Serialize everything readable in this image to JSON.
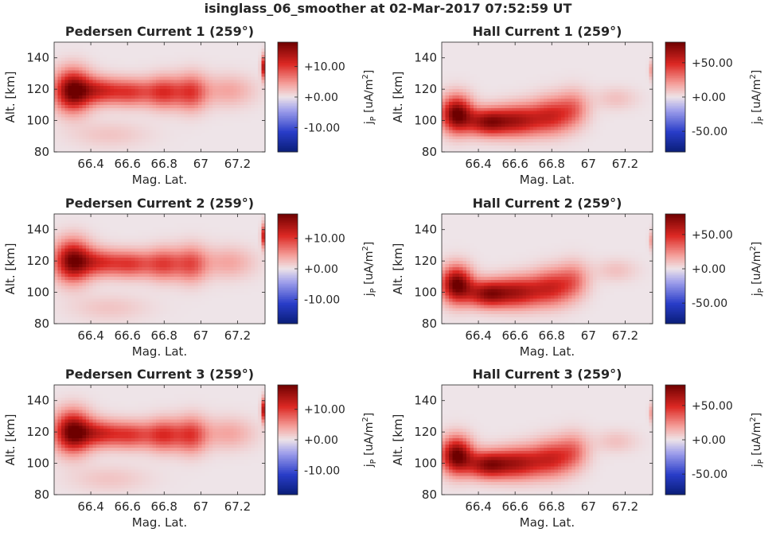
{
  "figure": {
    "title": "isinglass_06_smoother at 02-Mar-2017 07:52:59 UT"
  },
  "chart_data": [
    {
      "type": "heatmap",
      "title": "Pedersen Current 1 (259°)",
      "xlabel": "Mag. Lat.",
      "ylabel": "Alt. [km]",
      "xlim": [
        66.2,
        67.35
      ],
      "ylim": [
        80,
        150
      ],
      "xticks": [
        66.4,
        66.6,
        66.8,
        67,
        67.2
      ],
      "xtick_labels": [
        "66.4",
        "66.6",
        "66.8",
        "67",
        "67.2"
      ],
      "yticks": [
        80,
        100,
        120,
        140
      ],
      "ytick_labels": [
        "80",
        "100",
        "120",
        "140"
      ],
      "colorbar": {
        "label": "j_P [uA/m^2]",
        "label_main": "j",
        "label_sub": "P",
        "label_rest": " [uA/m",
        "label_sup": "2",
        "label_end": "]",
        "clim": [
          -18,
          18
        ],
        "ticks": [
          10,
          0,
          -10
        ],
        "tick_labels": [
          "+10.00",
          "+0.00",
          "-10.00"
        ],
        "colormap": "blue-white-red"
      },
      "features": [
        {
          "x": 66.3,
          "y": 119,
          "amp": 18,
          "sx": 0.07,
          "sy": 9
        },
        {
          "x": 66.45,
          "y": 119,
          "amp": 10,
          "sx": 0.08,
          "sy": 6
        },
        {
          "x": 66.62,
          "y": 118,
          "amp": 9,
          "sx": 0.08,
          "sy": 6
        },
        {
          "x": 66.8,
          "y": 118,
          "amp": 10,
          "sx": 0.07,
          "sy": 7
        },
        {
          "x": 66.95,
          "y": 118,
          "amp": 9,
          "sx": 0.06,
          "sy": 8
        },
        {
          "x": 67.15,
          "y": 119,
          "amp": 4,
          "sx": 0.1,
          "sy": 7
        },
        {
          "x": 66.5,
          "y": 91,
          "amp": 2,
          "sx": 0.15,
          "sy": 6
        },
        {
          "x": 67.35,
          "y": 134,
          "amp": 18,
          "sx": 0.012,
          "sy": 5
        }
      ]
    },
    {
      "type": "heatmap",
      "title": "Hall Current 1 (259°)",
      "xlabel": "Mag. Lat.",
      "ylabel": "Alt. [km]",
      "xlim": [
        66.2,
        67.35
      ],
      "ylim": [
        80,
        150
      ],
      "xticks": [
        66.4,
        66.6,
        66.8,
        67,
        67.2
      ],
      "xtick_labels": [
        "66.4",
        "66.6",
        "66.8",
        "67",
        "67.2"
      ],
      "yticks": [
        80,
        100,
        120,
        140
      ],
      "ytick_labels": [
        "80",
        "100",
        "120",
        "140"
      ],
      "colorbar": {
        "label": "j_P [uA/m^2]",
        "label_main": "j",
        "label_sub": "P",
        "label_rest": " [uA/m",
        "label_sup": "2",
        "label_end": "]",
        "clim": [
          -80,
          80
        ],
        "ticks": [
          50,
          0,
          -50
        ],
        "tick_labels": [
          "+50.00",
          "+0.00",
          "-50.00"
        ],
        "colormap": "blue-white-red"
      },
      "features": [
        {
          "x": 66.28,
          "y": 104,
          "amp": 80,
          "sx": 0.06,
          "sy": 8
        },
        {
          "x": 66.45,
          "y": 99,
          "amp": 65,
          "sx": 0.08,
          "sy": 6
        },
        {
          "x": 66.62,
          "y": 100,
          "amp": 55,
          "sx": 0.09,
          "sy": 7
        },
        {
          "x": 66.8,
          "y": 103,
          "amp": 45,
          "sx": 0.08,
          "sy": 8
        },
        {
          "x": 66.92,
          "y": 108,
          "amp": 25,
          "sx": 0.06,
          "sy": 8
        },
        {
          "x": 67.15,
          "y": 114,
          "amp": 10,
          "sx": 0.08,
          "sy": 5
        },
        {
          "x": 67.35,
          "y": 132,
          "amp": 25,
          "sx": 0.012,
          "sy": 4
        }
      ]
    },
    {
      "type": "heatmap",
      "title": "Pedersen Current 2 (259°)",
      "xlabel": "Mag. Lat.",
      "ylabel": "Alt. [km]",
      "xlim": [
        66.2,
        67.35
      ],
      "ylim": [
        80,
        150
      ],
      "xticks": [
        66.4,
        66.6,
        66.8,
        67,
        67.2
      ],
      "xtick_labels": [
        "66.4",
        "66.6",
        "66.8",
        "67",
        "67.2"
      ],
      "yticks": [
        80,
        100,
        120,
        140
      ],
      "ytick_labels": [
        "80",
        "100",
        "120",
        "140"
      ],
      "colorbar": {
        "label": "j_P [uA/m^2]",
        "label_main": "j",
        "label_sub": "P",
        "label_rest": " [uA/m",
        "label_sup": "2",
        "label_end": "]",
        "clim": [
          -18,
          18
        ],
        "ticks": [
          10,
          0,
          -10
        ],
        "tick_labels": [
          "+10.00",
          "+0.00",
          "-10.00"
        ],
        "colormap": "blue-white-red"
      },
      "features": [
        {
          "x": 66.3,
          "y": 120,
          "amp": 17,
          "sx": 0.07,
          "sy": 9
        },
        {
          "x": 66.45,
          "y": 119,
          "amp": 9,
          "sx": 0.08,
          "sy": 6
        },
        {
          "x": 66.62,
          "y": 118,
          "amp": 9,
          "sx": 0.08,
          "sy": 6
        },
        {
          "x": 66.8,
          "y": 118,
          "amp": 9,
          "sx": 0.07,
          "sy": 7
        },
        {
          "x": 66.95,
          "y": 118,
          "amp": 8,
          "sx": 0.06,
          "sy": 8
        },
        {
          "x": 67.15,
          "y": 119,
          "amp": 4,
          "sx": 0.1,
          "sy": 7
        },
        {
          "x": 66.5,
          "y": 90,
          "amp": 2,
          "sx": 0.15,
          "sy": 6
        },
        {
          "x": 67.35,
          "y": 136,
          "amp": 16,
          "sx": 0.012,
          "sy": 5
        }
      ]
    },
    {
      "type": "heatmap",
      "title": "Hall Current 2 (259°)",
      "xlabel": "Mag. Lat.",
      "ylabel": "Alt. [km]",
      "xlim": [
        66.2,
        67.35
      ],
      "ylim": [
        80,
        150
      ],
      "xticks": [
        66.4,
        66.6,
        66.8,
        67,
        67.2
      ],
      "xtick_labels": [
        "66.4",
        "66.6",
        "66.8",
        "67",
        "67.2"
      ],
      "yticks": [
        80,
        100,
        120,
        140
      ],
      "ytick_labels": [
        "80",
        "100",
        "120",
        "140"
      ],
      "colorbar": {
        "label": "j_P [uA/m^2]",
        "label_main": "j",
        "label_sub": "P",
        "label_rest": " [uA/m",
        "label_sup": "2",
        "label_end": "]",
        "clim": [
          -80,
          80
        ],
        "ticks": [
          50,
          0,
          -50
        ],
        "tick_labels": [
          "+50.00",
          "+0.00",
          "-50.00"
        ],
        "colormap": "blue-white-red"
      },
      "features": [
        {
          "x": 66.28,
          "y": 105,
          "amp": 80,
          "sx": 0.06,
          "sy": 8
        },
        {
          "x": 66.45,
          "y": 99,
          "amp": 65,
          "sx": 0.08,
          "sy": 6
        },
        {
          "x": 66.62,
          "y": 100,
          "amp": 55,
          "sx": 0.09,
          "sy": 7
        },
        {
          "x": 66.8,
          "y": 103,
          "amp": 45,
          "sx": 0.08,
          "sy": 8
        },
        {
          "x": 66.92,
          "y": 108,
          "amp": 25,
          "sx": 0.06,
          "sy": 8
        },
        {
          "x": 67.15,
          "y": 114,
          "amp": 10,
          "sx": 0.08,
          "sy": 5
        },
        {
          "x": 67.35,
          "y": 133,
          "amp": 25,
          "sx": 0.012,
          "sy": 4
        }
      ]
    },
    {
      "type": "heatmap",
      "title": "Pedersen Current 3 (259°)",
      "xlabel": "Mag. Lat.",
      "ylabel": "Alt. [km]",
      "xlim": [
        66.2,
        67.35
      ],
      "ylim": [
        80,
        150
      ],
      "xticks": [
        66.4,
        66.6,
        66.8,
        67,
        67.2
      ],
      "xtick_labels": [
        "66.4",
        "66.6",
        "66.8",
        "67",
        "67.2"
      ],
      "yticks": [
        80,
        100,
        120,
        140
      ],
      "ytick_labels": [
        "80",
        "100",
        "120",
        "140"
      ],
      "colorbar": {
        "label": "j_P [uA/m^2]",
        "label_main": "j",
        "label_sub": "P",
        "label_rest": " [uA/m",
        "label_sup": "2",
        "label_end": "]",
        "clim": [
          -18,
          18
        ],
        "ticks": [
          10,
          0,
          -10
        ],
        "tick_labels": [
          "+10.00",
          "+0.00",
          "-10.00"
        ],
        "colormap": "blue-white-red"
      },
      "features": [
        {
          "x": 66.3,
          "y": 120,
          "amp": 18,
          "sx": 0.07,
          "sy": 9
        },
        {
          "x": 66.45,
          "y": 119,
          "amp": 10,
          "sx": 0.08,
          "sy": 6
        },
        {
          "x": 66.62,
          "y": 118,
          "amp": 9,
          "sx": 0.08,
          "sy": 6
        },
        {
          "x": 66.8,
          "y": 118,
          "amp": 10,
          "sx": 0.07,
          "sy": 7
        },
        {
          "x": 66.95,
          "y": 118,
          "amp": 9,
          "sx": 0.06,
          "sy": 8
        },
        {
          "x": 67.15,
          "y": 119,
          "amp": 4,
          "sx": 0.1,
          "sy": 7
        },
        {
          "x": 66.5,
          "y": 90,
          "amp": 2,
          "sx": 0.15,
          "sy": 6
        },
        {
          "x": 67.35,
          "y": 134,
          "amp": 18,
          "sx": 0.012,
          "sy": 5
        }
      ]
    },
    {
      "type": "heatmap",
      "title": "Hall Current 3 (259°)",
      "xlabel": "Mag. Lat.",
      "ylabel": "Alt. [km]",
      "xlim": [
        66.2,
        67.35
      ],
      "ylim": [
        80,
        150
      ],
      "xticks": [
        66.4,
        66.6,
        66.8,
        67,
        67.2
      ],
      "xtick_labels": [
        "66.4",
        "66.6",
        "66.8",
        "67",
        "67.2"
      ],
      "yticks": [
        80,
        100,
        120,
        140
      ],
      "ytick_labels": [
        "80",
        "100",
        "120",
        "140"
      ],
      "colorbar": {
        "label": "j_P [uA/m^2]",
        "label_main": "j",
        "label_sub": "P",
        "label_rest": " [uA/m",
        "label_sup": "2",
        "label_end": "]",
        "clim": [
          -80,
          80
        ],
        "ticks": [
          50,
          0,
          -50
        ],
        "tick_labels": [
          "+50.00",
          "+0.00",
          "-50.00"
        ],
        "colormap": "blue-white-red"
      },
      "features": [
        {
          "x": 66.28,
          "y": 105,
          "amp": 80,
          "sx": 0.06,
          "sy": 8
        },
        {
          "x": 66.45,
          "y": 99,
          "amp": 65,
          "sx": 0.08,
          "sy": 6
        },
        {
          "x": 66.62,
          "y": 100,
          "amp": 55,
          "sx": 0.09,
          "sy": 7
        },
        {
          "x": 66.8,
          "y": 103,
          "amp": 45,
          "sx": 0.08,
          "sy": 8
        },
        {
          "x": 66.92,
          "y": 108,
          "amp": 25,
          "sx": 0.06,
          "sy": 8
        },
        {
          "x": 67.15,
          "y": 114,
          "amp": 10,
          "sx": 0.08,
          "sy": 5
        },
        {
          "x": 67.35,
          "y": 132,
          "amp": 25,
          "sx": 0.012,
          "sy": 4
        }
      ]
    }
  ]
}
